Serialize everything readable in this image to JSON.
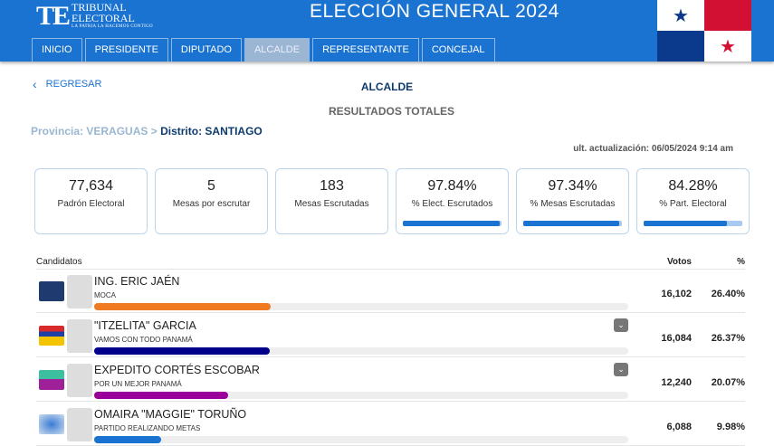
{
  "header": {
    "logo_main": "TE",
    "logo_line1": "TRIBUNAL",
    "logo_line2": "ELECTORAL",
    "logo_tagline": "LA PATRIA LA HACEMOS CONTIGO",
    "title": "ELECCIÓN GENERAL 2024",
    "nav": [
      {
        "label": "INICIO"
      },
      {
        "label": "PRESIDENTE"
      },
      {
        "label": "DIPUTADO"
      },
      {
        "label": "ALCALDE",
        "active": true
      },
      {
        "label": "REPRESENTANTE"
      },
      {
        "label": "CONCEJAL"
      }
    ]
  },
  "back_label": "REGRESAR",
  "back_icon": "chevron-left-icon",
  "page_title": "ALCALDE",
  "subtitle": "RESULTADOS TOTALES",
  "breadcrumb": {
    "province": "Provincia: VERAGUAS",
    "sep": ">",
    "district": "Distrito: SANTIAGO"
  },
  "last_update": "ult. actualización: 06/05/2024 9:14 am",
  "stats": [
    {
      "value": "77,634",
      "label": "Padrón Electoral"
    },
    {
      "value": "5",
      "label": "Mesas por escrutar"
    },
    {
      "value": "183",
      "label": "Mesas Escrutadas"
    },
    {
      "value": "97.84%",
      "label": "% Elect. Escrutados",
      "progress": 97.84
    },
    {
      "value": "97.34%",
      "label": "% Mesas Escrutadas",
      "progress": 97.34
    },
    {
      "value": "84.28%",
      "label": "% Part. Electoral",
      "progress": 84.28
    }
  ],
  "table": {
    "col_candidates": "Candidatos",
    "col_votes": "Votos",
    "col_pct": "%",
    "rows": [
      {
        "name": "ING. ERIC JAÉN",
        "party": "MOCA",
        "votes": "16,102",
        "pct": "26.40%",
        "share": 26.4,
        "color": "#f07b22",
        "expand": false
      },
      {
        "name": "\"ITZELITA\" GARCIA",
        "party": "VAMOS CON TODO PANAMÁ",
        "votes": "16,084",
        "pct": "26.37%",
        "share": 26.37,
        "color": "#00008b",
        "expand": true
      },
      {
        "name": "EXPEDITO CORTÉS ESCOBAR",
        "party": "POR UN MEJOR PANAMÁ",
        "votes": "12,240",
        "pct": "20.07%",
        "share": 20.07,
        "color": "#990099",
        "expand": true
      },
      {
        "name": "OMAIRA \"MAGGIE\" TORUÑO",
        "party": "PARTIDO REALIZANDO METAS",
        "votes": "6,088",
        "pct": "9.98%",
        "share": 9.98,
        "color": "#1a73d0",
        "expand": false
      }
    ]
  }
}
